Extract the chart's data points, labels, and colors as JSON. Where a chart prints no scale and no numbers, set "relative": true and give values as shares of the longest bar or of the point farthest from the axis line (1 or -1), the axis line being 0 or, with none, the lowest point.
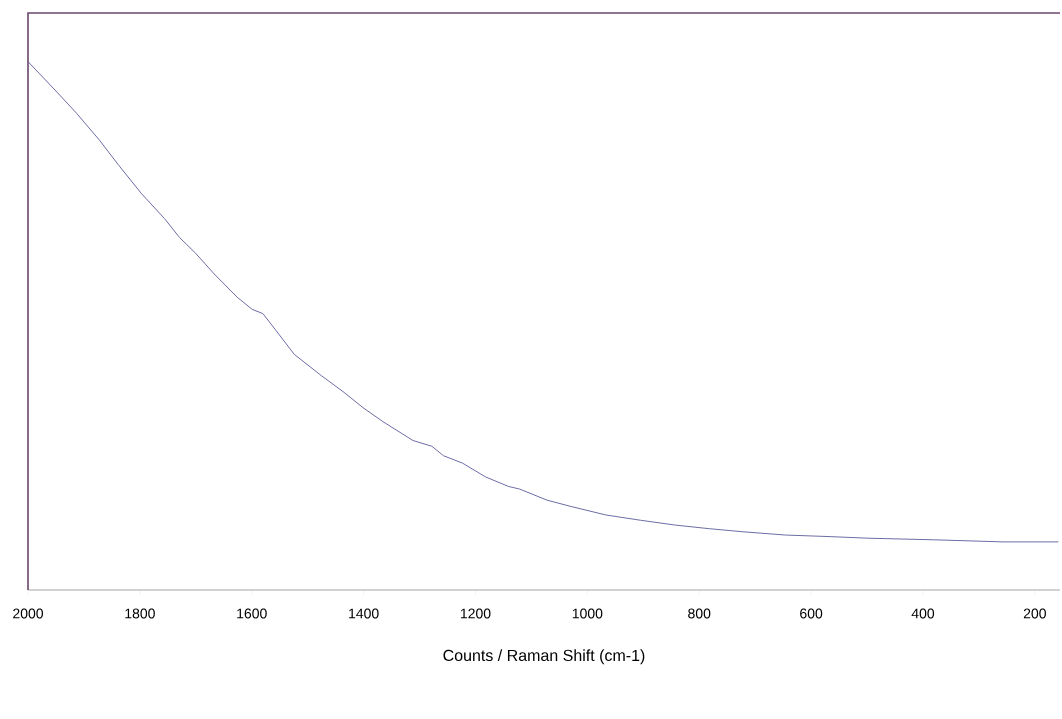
{
  "chart_data": {
    "type": "line",
    "relative": true,
    "xlabel": "Counts / Raman Shift (cm-1)",
    "x": [
      2000,
      1948,
      1913,
      1872,
      1838,
      1797,
      1756,
      1729,
      1701,
      1667,
      1626,
      1599,
      1580,
      1558,
      1524,
      1476,
      1435,
      1401,
      1366,
      1312,
      1278,
      1257,
      1223,
      1182,
      1141,
      1121,
      1072,
      1029,
      967,
      905,
      844,
      782,
      720,
      646,
      566,
      498,
      381,
      257,
      158
    ],
    "series": [
      {
        "color": "#5c5c9c",
        "values": [
          1.0,
          0.942,
          0.902,
          0.851,
          0.804,
          0.75,
          0.703,
          0.667,
          0.638,
          0.598,
          0.554,
          0.531,
          0.523,
          0.493,
          0.446,
          0.406,
          0.374,
          0.345,
          0.319,
          0.283,
          0.272,
          0.254,
          0.24,
          0.214,
          0.196,
          0.191,
          0.17,
          0.158,
          0.142,
          0.132,
          0.123,
          0.116,
          0.11,
          0.104,
          0.101,
          0.098,
          0.095,
          0.091,
          0.091
        ]
      }
    ],
    "xlim": [
      2000,
      155
    ],
    "xticks": [
      2000,
      1800,
      1600,
      1400,
      1200,
      1000,
      800,
      600,
      400,
      200
    ]
  }
}
